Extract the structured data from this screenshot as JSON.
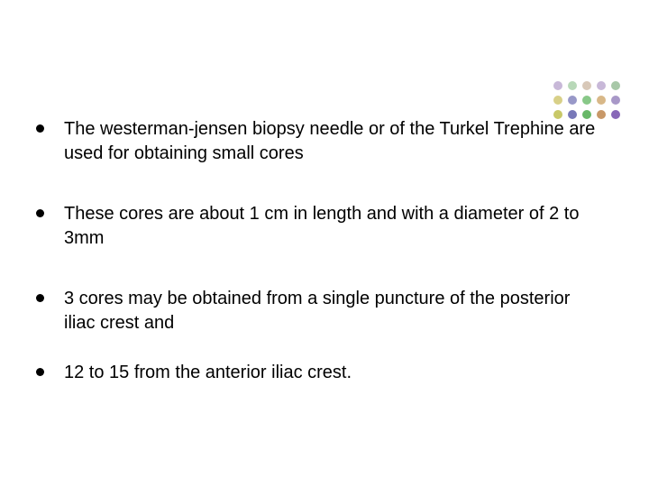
{
  "decoration": {
    "dot_colors": [
      "#c8b8d8",
      "#b8d8b8",
      "#d8c8b8",
      "#c8b8d8",
      "#a8c8a8",
      "#d8d088",
      "#9898c8",
      "#88c888",
      "#d8b888",
      "#a898c8",
      "#c8c868",
      "#7878b8",
      "#68b868",
      "#c89868",
      "#8868b8"
    ]
  },
  "bullets": [
    {
      "text": "The westerman-jensen biopsy needle or of the Turkel Trephine are used for obtaining small cores"
    },
    {
      "text": "These cores are about 1 cm in length and with a diameter of 2 to 3mm"
    },
    {
      "text": "3 cores may be obtained from a single puncture of the posterior iliac crest and"
    },
    {
      "text": "12 to 15 from the anterior iliac crest."
    }
  ],
  "style": {
    "background_color": "#ffffff",
    "text_color": "#000000",
    "bullet_color": "#000000",
    "font_size_pt": 15.5,
    "font_family": "Arial"
  }
}
